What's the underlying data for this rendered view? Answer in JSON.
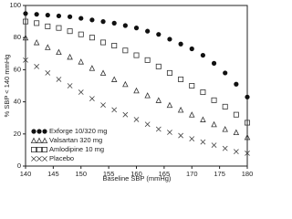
{
  "chart_data": {
    "type": "scatter",
    "xlabel": "Baseline SBP (mmHg)",
    "ylabel": "% SBP < 140 mmHg",
    "x": [
      140,
      142,
      144,
      146,
      148,
      150,
      152,
      154,
      156,
      158,
      160,
      162,
      164,
      166,
      168,
      170,
      172,
      174,
      176,
      178,
      180
    ],
    "series": [
      {
        "name": "Exforge 10/320 mg",
        "color": "#111111",
        "marker": "circle-filled",
        "values": [
          95,
          94.5,
          94,
          93.5,
          93,
          92,
          91,
          90,
          89,
          87.5,
          86,
          84,
          82,
          79,
          76,
          73,
          69,
          64,
          58,
          51,
          43
        ]
      },
      {
        "name": "Valsartan 320 mg",
        "color": "#333333",
        "marker": "triangle",
        "values": [
          80,
          77,
          74,
          71,
          68,
          65,
          61,
          58,
          54,
          51,
          47,
          44,
          41,
          38,
          35,
          32,
          29,
          26,
          23,
          21,
          18
        ]
      },
      {
        "name": "Amlodipine 10 mg",
        "color": "#333333",
        "marker": "square",
        "values": [
          90,
          89,
          87,
          86,
          84,
          82,
          80,
          77,
          75,
          72,
          69,
          66,
          62,
          58,
          54,
          50,
          46,
          41,
          37,
          32,
          27
        ]
      },
      {
        "name": "Placebo",
        "color": "#444444",
        "marker": "x",
        "values": [
          66,
          62,
          58,
          54,
          50,
          46,
          42,
          38,
          35,
          32,
          29,
          26,
          23,
          21,
          19,
          17,
          15,
          13,
          11,
          9,
          8
        ]
      }
    ],
    "xlim": [
      140,
      180
    ],
    "xticks": [
      140,
      145,
      150,
      155,
      160,
      165,
      170,
      175,
      180
    ],
    "ylim": [
      0,
      100
    ],
    "yticks": [
      0,
      20,
      40,
      60,
      80,
      100
    ],
    "legend": "lower left"
  }
}
